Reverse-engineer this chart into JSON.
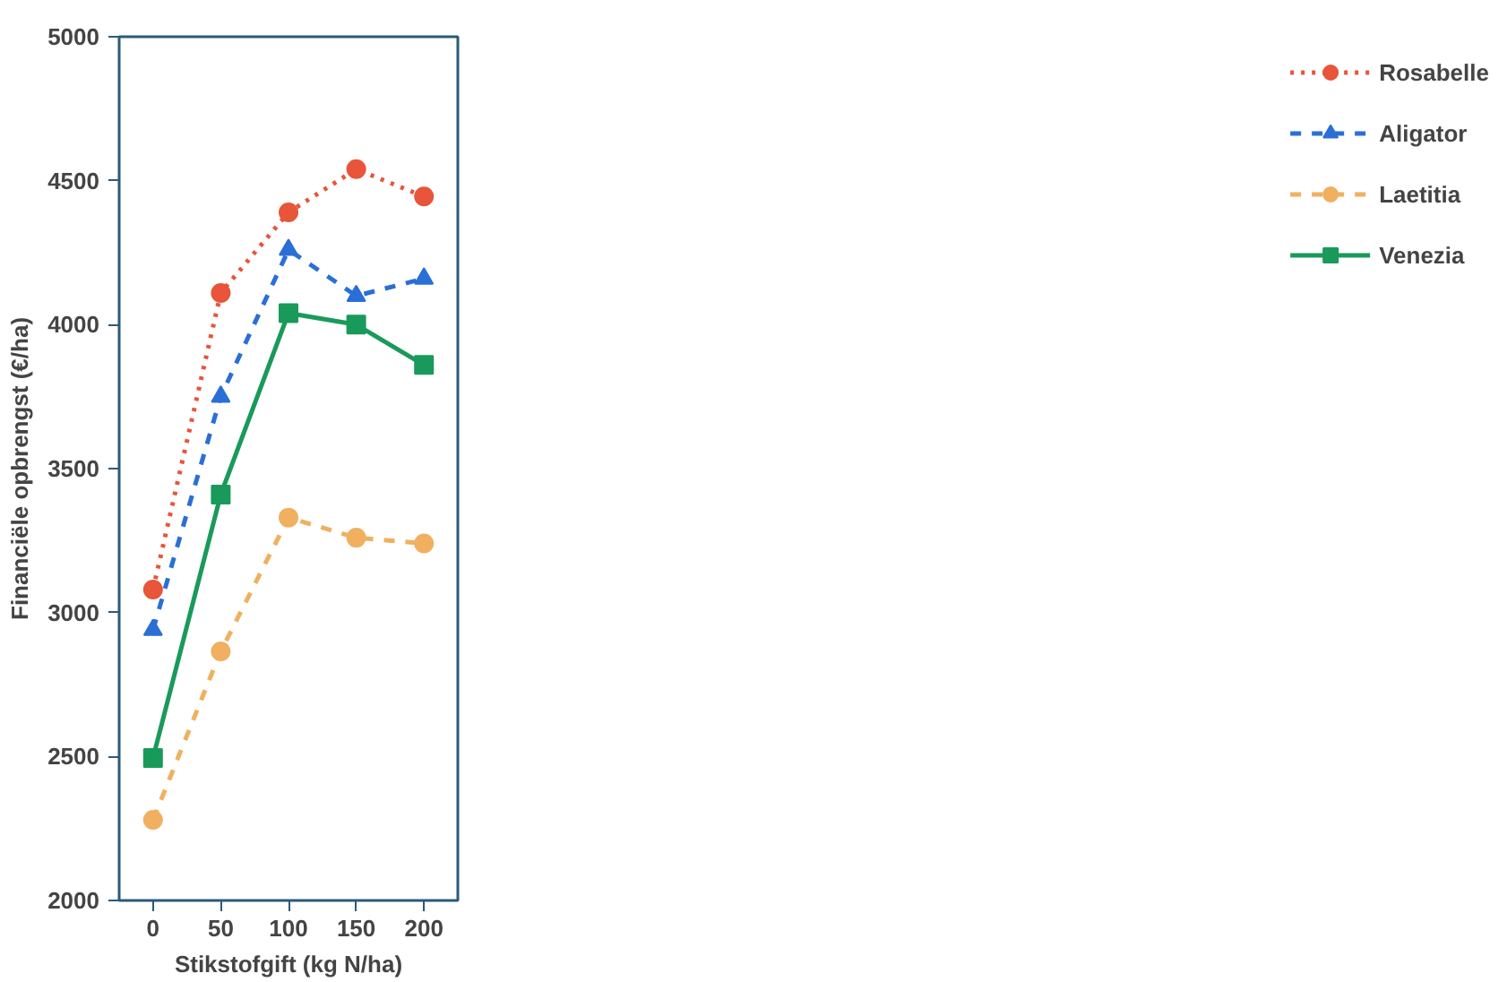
{
  "chart_data": {
    "type": "line",
    "xlabel": "Stikstofgift (kg N/ha)",
    "ylabel": "Financiële opbrengst (€/ha)",
    "x": [
      0,
      50,
      100,
      150,
      200
    ],
    "xlim": [
      -25,
      225
    ],
    "xticks": [
      0,
      50,
      100,
      150,
      200
    ],
    "ylim": [
      2000,
      5000
    ],
    "yticks": [
      2000,
      2500,
      3000,
      3500,
      4000,
      4500,
      5000
    ],
    "grid": false,
    "legend": "right",
    "series": [
      {
        "name": "Rosabelle",
        "color": "#e8553a",
        "marker": "circle",
        "line_style": "dotted",
        "values": [
          3080,
          4110,
          4390,
          4540,
          4445
        ]
      },
      {
        "name": "Aligator",
        "color": "#2a6fd6",
        "marker": "triangle",
        "line_style": "dashed",
        "values": [
          2940,
          3750,
          4260,
          4100,
          4160
        ]
      },
      {
        "name": "Laetitia",
        "color": "#f0b060",
        "marker": "circle",
        "line_style": "dashed",
        "values": [
          2280,
          2865,
          3330,
          3260,
          3240
        ]
      },
      {
        "name": "Venezia",
        "color": "#1a9a5a",
        "marker": "square",
        "line_style": "solid",
        "values": [
          2495,
          3410,
          4040,
          4000,
          3860
        ]
      }
    ]
  }
}
